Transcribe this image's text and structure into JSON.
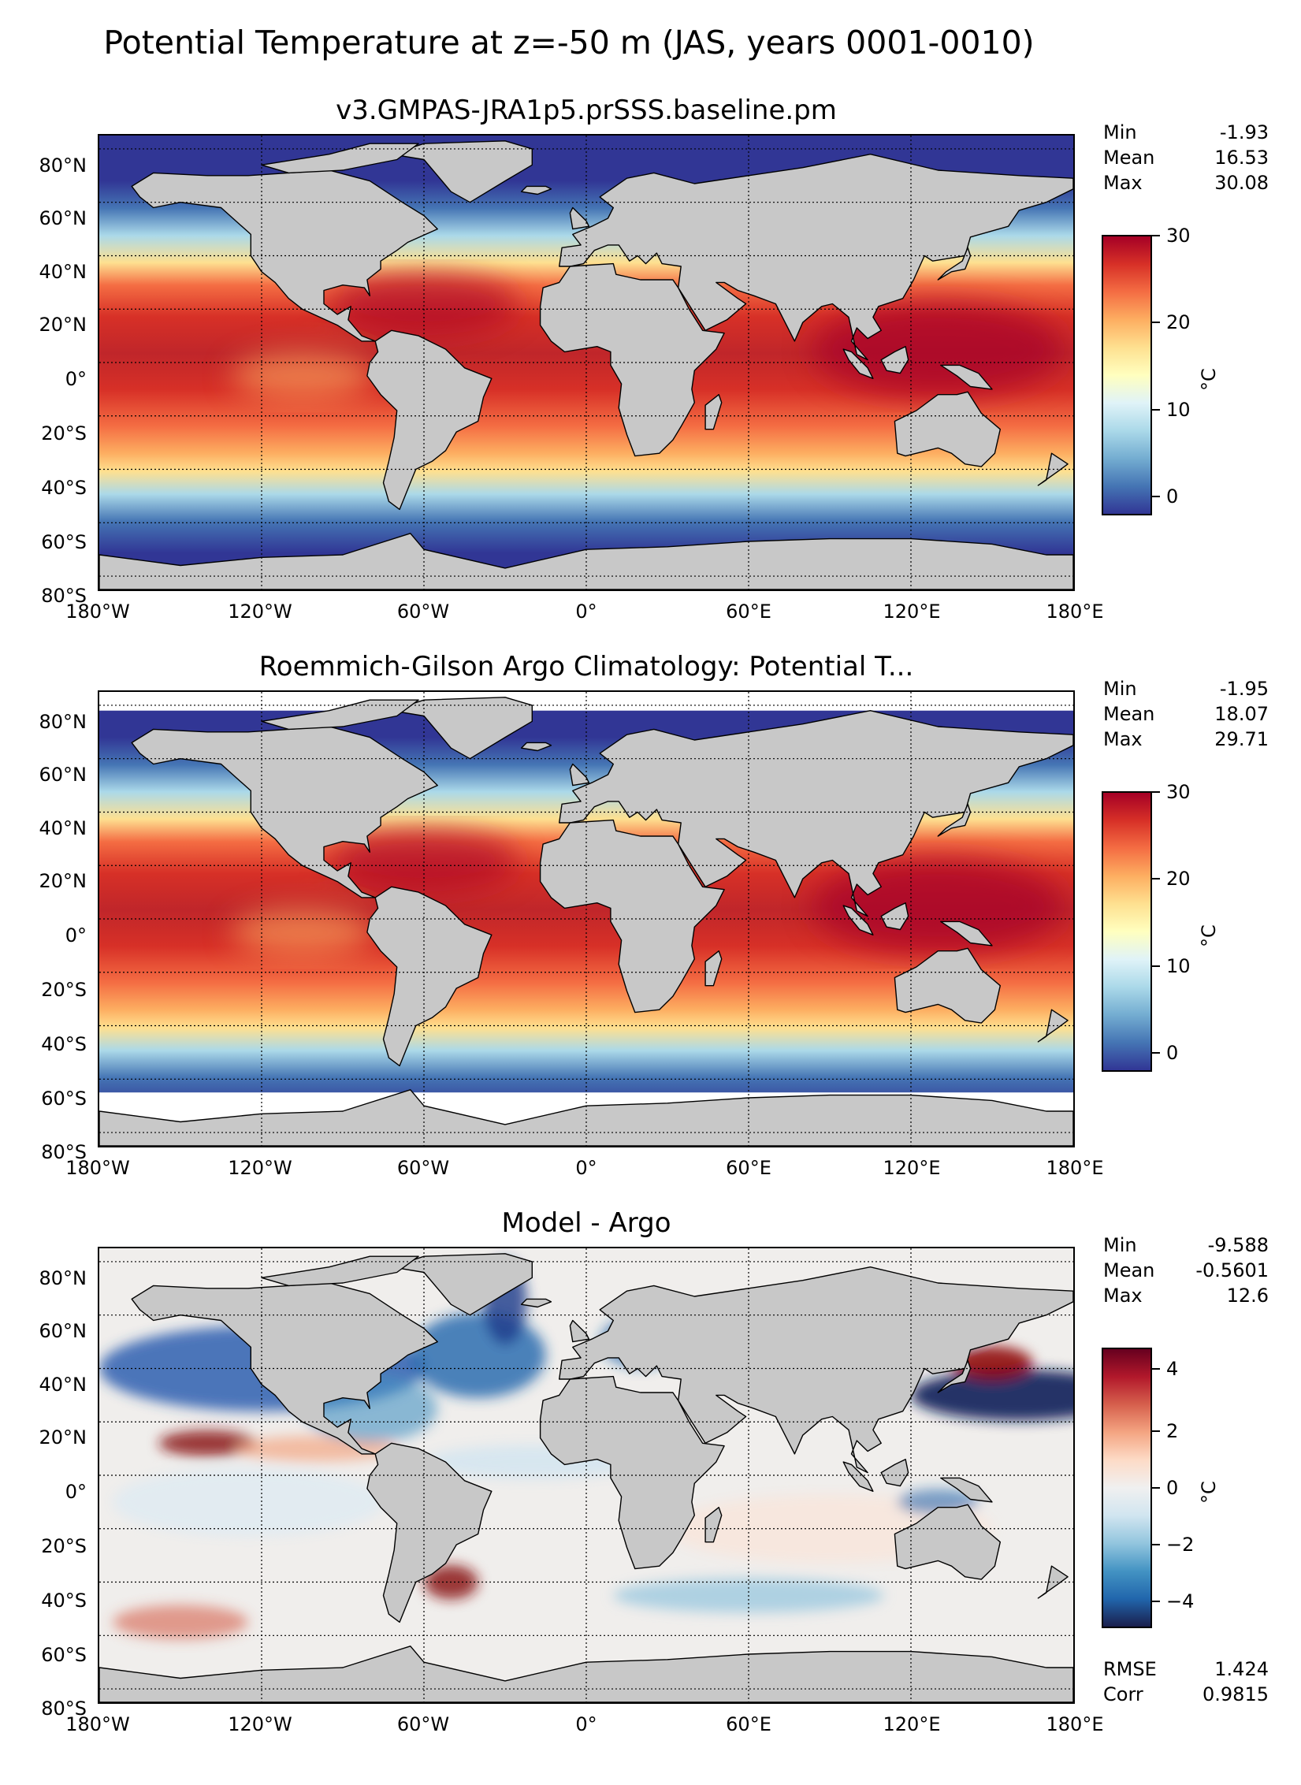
{
  "figure": {
    "suptitle": "Potential Temperature at z=-50 m (JAS, years 0001-0010)"
  },
  "axes": {
    "lat_labels": [
      "80°N",
      "60°N",
      "40°N",
      "20°N",
      "0°",
      "20°S",
      "40°S",
      "60°S",
      "80°S"
    ],
    "lon_labels": [
      "180°W",
      "120°W",
      "60°W",
      "0°",
      "60°E",
      "120°E",
      "180°E"
    ]
  },
  "panels": [
    {
      "title": "v3.GMPAS-JRA1p5.prSSS.baseline.pm",
      "stats": [
        {
          "label": "Min",
          "value": "-1.93"
        },
        {
          "label": "Mean",
          "value": "16.53"
        },
        {
          "label": "Max",
          "value": "30.08"
        }
      ],
      "colorbar": {
        "ticks": [
          "30",
          "20",
          "10",
          "0"
        ],
        "unit": "°C"
      }
    },
    {
      "title": "Roemmich-Gilson Argo Climatology: Potential T...",
      "stats": [
        {
          "label": "Min",
          "value": "-1.95"
        },
        {
          "label": "Mean",
          "value": "18.07"
        },
        {
          "label": "Max",
          "value": "29.71"
        }
      ],
      "colorbar": {
        "ticks": [
          "30",
          "20",
          "10",
          "0"
        ],
        "unit": "°C"
      }
    },
    {
      "title": "Model - Argo",
      "stats": [
        {
          "label": "Min",
          "value": "-9.588"
        },
        {
          "label": "Mean",
          "value": "-0.5601"
        },
        {
          "label": "Max",
          "value": "12.6"
        }
      ],
      "colorbar": {
        "ticks": [
          "4",
          "2",
          "0",
          "−2",
          "−4"
        ],
        "unit": "°C"
      },
      "extra": [
        {
          "label": "RMSE",
          "value": "1.424"
        },
        {
          "label": "Corr",
          "value": "0.9815"
        }
      ]
    }
  ],
  "chart_data": [
    {
      "type": "heatmap",
      "title": "v3.GMPAS-JRA1p5.prSSS.baseline.pm",
      "variable": "Potential Temperature",
      "xlim": [
        -180,
        180
      ],
      "ylim": [
        -85,
        85
      ],
      "colorbar_range": [
        -2,
        30
      ],
      "colorbar_ticks": [
        0,
        10,
        20,
        30
      ],
      "units": "°C",
      "colormap": "RdYlBu_r",
      "min": -1.93,
      "mean": 16.53,
      "max": 30.08
    },
    {
      "type": "heatmap",
      "title": "Roemmich-Gilson Argo Climatology: Potential T...",
      "variable": "Potential Temperature",
      "xlim": [
        -180,
        180
      ],
      "ylim": [
        -85,
        85
      ],
      "colorbar_range": [
        -2,
        30
      ],
      "colorbar_ticks": [
        0,
        10,
        20,
        30
      ],
      "units": "°C",
      "colormap": "RdYlBu_r",
      "min": -1.95,
      "mean": 18.07,
      "max": 29.71
    },
    {
      "type": "heatmap",
      "title": "Model - Argo",
      "variable": "Potential Temperature difference",
      "xlim": [
        -180,
        180
      ],
      "ylim": [
        -85,
        85
      ],
      "colorbar_range": [
        -5,
        5
      ],
      "colorbar_ticks": [
        -4,
        -2,
        0,
        2,
        4
      ],
      "units": "°C",
      "colormap": "RdBu_r",
      "min": -9.588,
      "mean": -0.5601,
      "max": 12.6,
      "rmse": 1.424,
      "corr": 0.9815
    }
  ],
  "colors": {
    "land": "#c8c8c8",
    "warm": "#b2182b",
    "cool": "#313695"
  }
}
